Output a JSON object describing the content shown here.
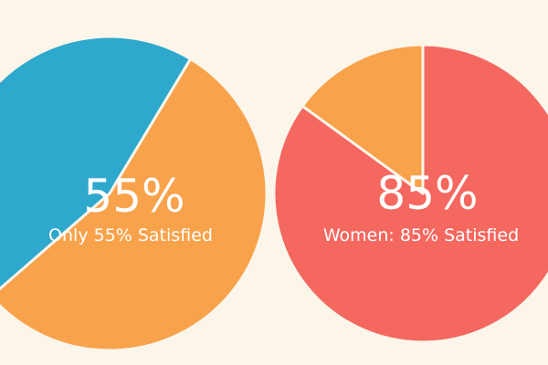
{
  "colors": {
    "background": "#fbf5ea",
    "blue": "#2ea8cd",
    "orange": "#f8a24b",
    "red": "#f46860",
    "text": "#ffffff"
  },
  "chart_data": [
    {
      "type": "pie",
      "slices": [
        {
          "value": 55,
          "color": "#f8a24b"
        },
        {
          "value": 45,
          "color": "#2ea8cd"
        }
      ],
      "big_label": "55%",
      "caption": "Only 55% Satisfied"
    },
    {
      "type": "pie",
      "slices": [
        {
          "value": 85,
          "color": "#f46860"
        },
        {
          "value": 15,
          "color": "#f8a24b"
        }
      ],
      "big_label": "85%",
      "caption": "Women: 85% Satisfied"
    }
  ]
}
